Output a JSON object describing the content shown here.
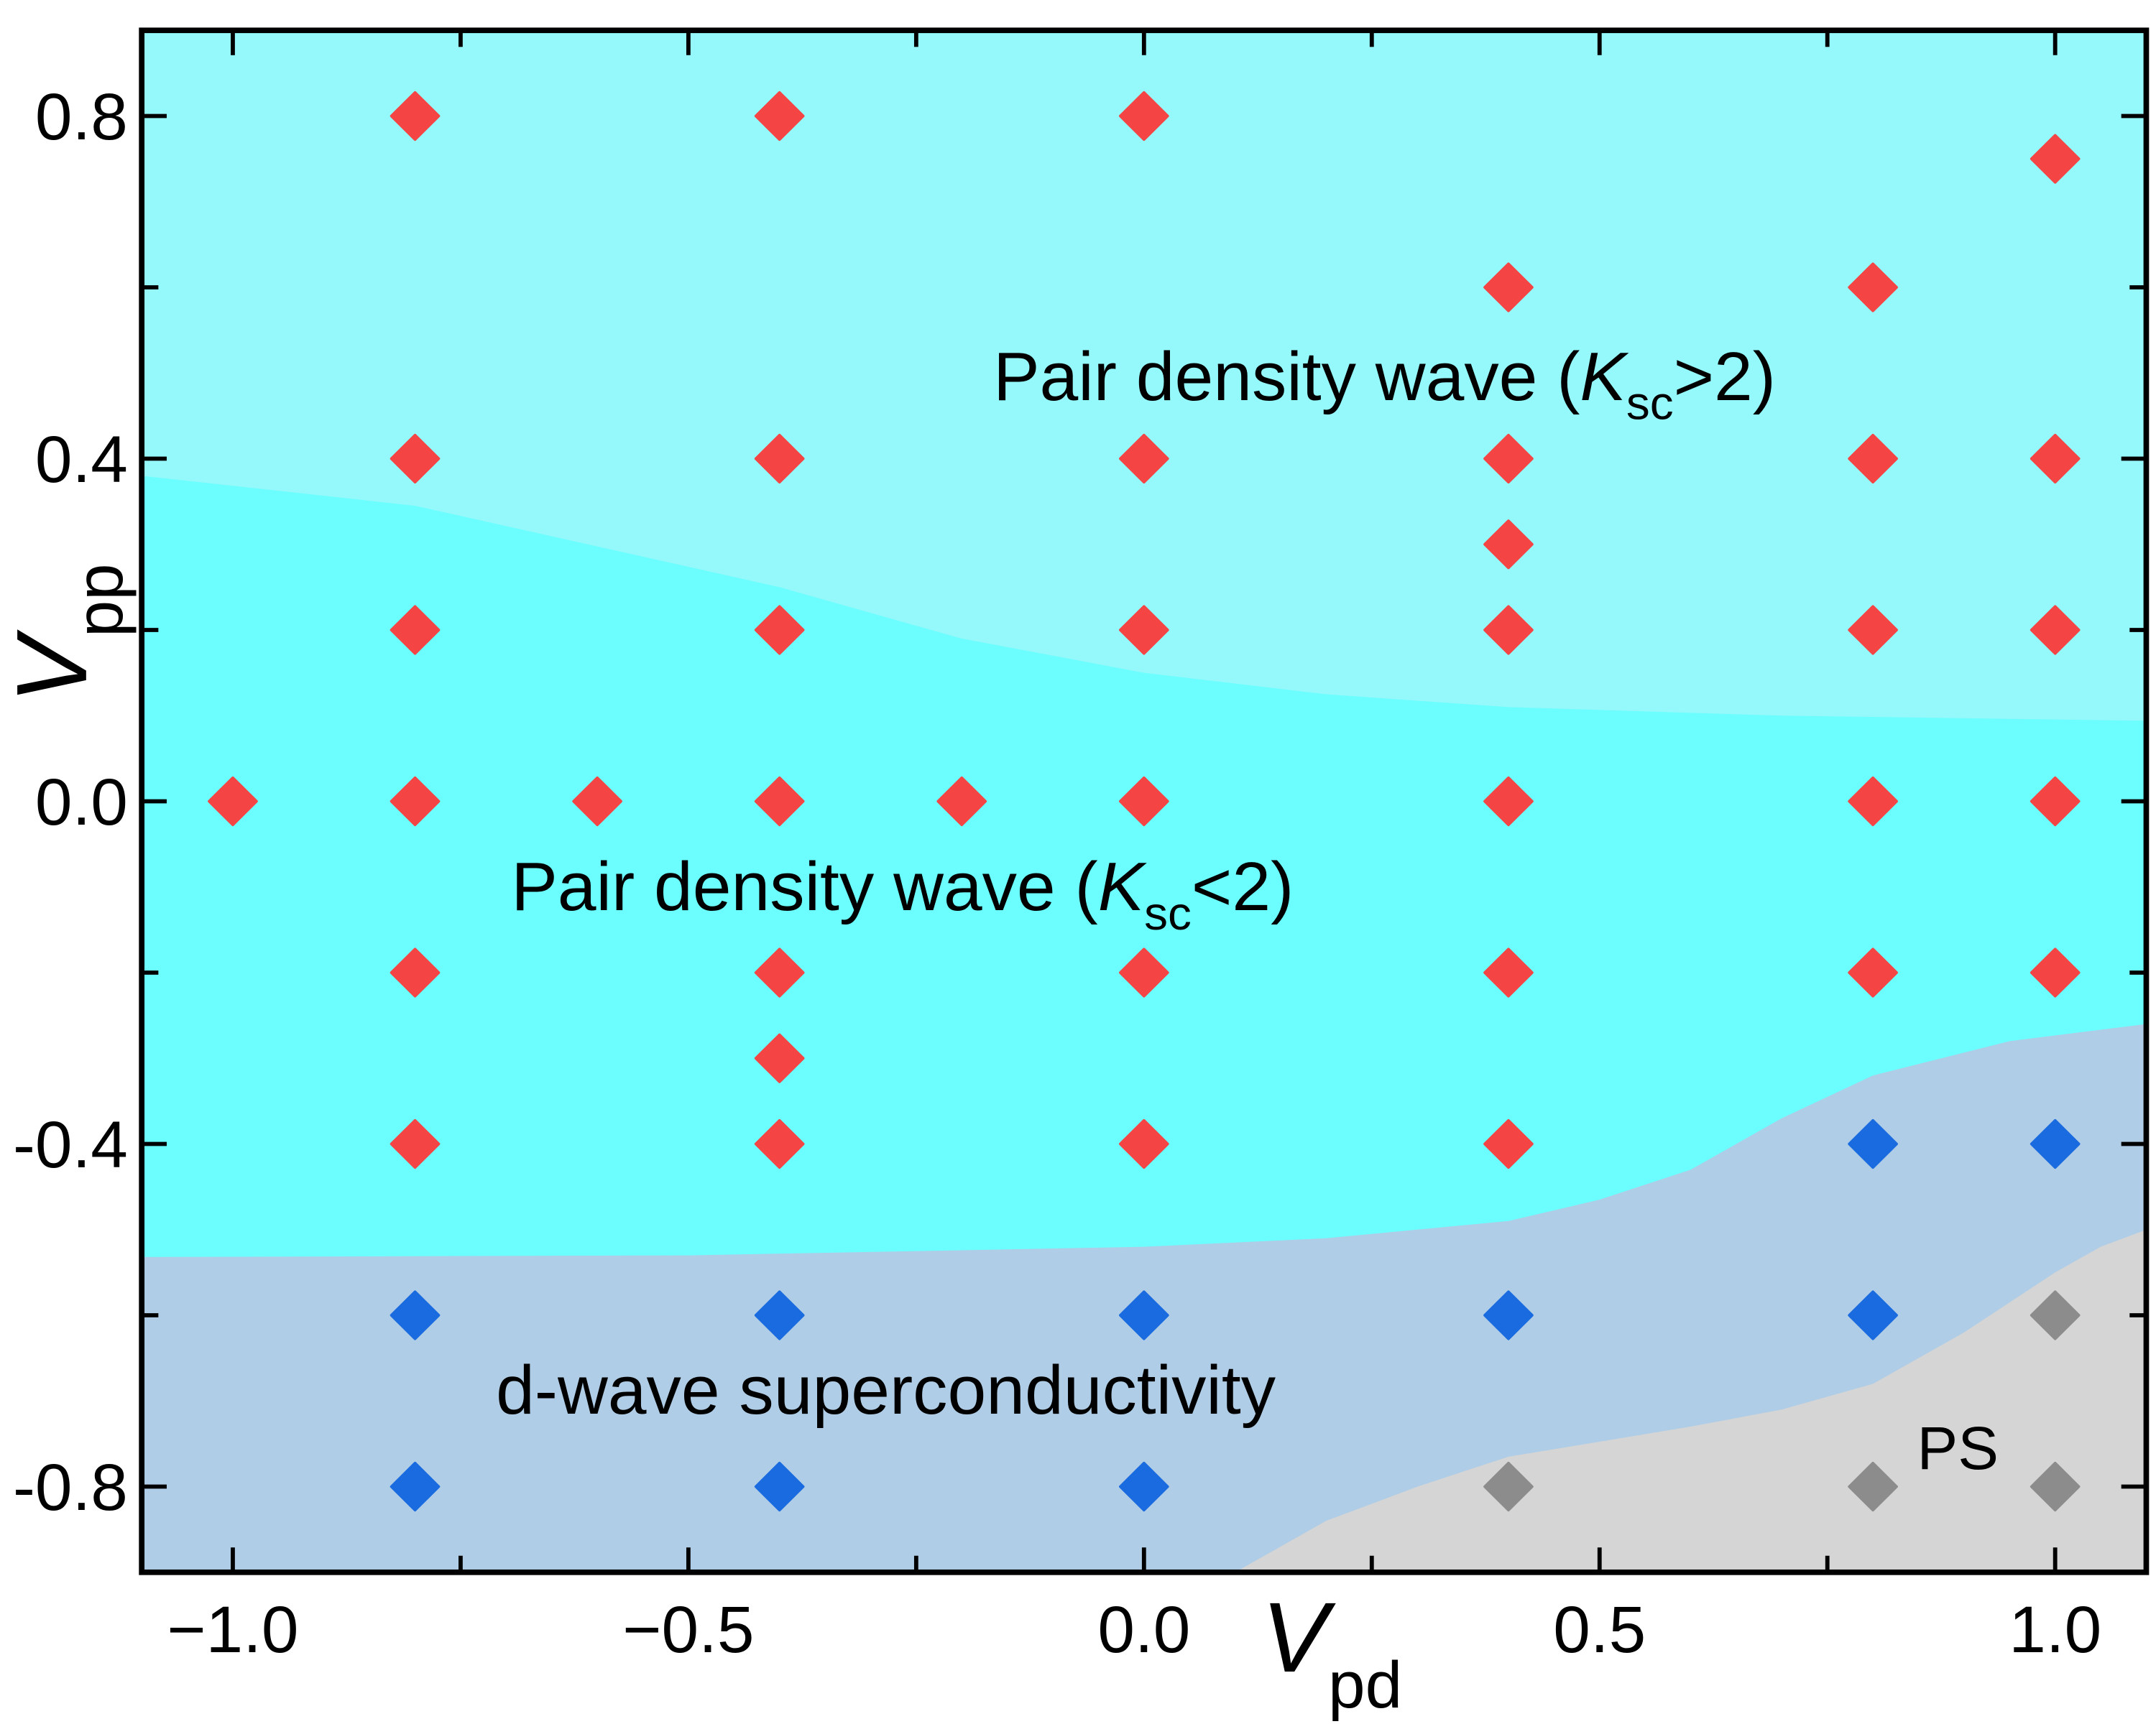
{
  "chart_data": {
    "type": "scatter",
    "xlabel": "V",
    "xlabel_sub": "pd",
    "ylabel": "V",
    "ylabel_sub": "pp",
    "xlim": [
      -1.1,
      1.1
    ],
    "ylim": [
      -0.9,
      0.9
    ],
    "xticks": [
      -1.0,
      -0.5,
      0.0,
      0.5,
      1.0
    ],
    "xtick_labels": [
      "−1.0",
      "−0.5",
      "0.0",
      "0.5",
      "1.0"
    ],
    "yticks": [
      0.8,
      0.4,
      0.0,
      -0.4,
      -0.8
    ],
    "ytick_labels": [
      "0.8",
      "0.4",
      "0.0",
      "-0.4",
      "-0.8"
    ],
    "grid": false,
    "marker": "diamond",
    "colors": {
      "pdw": "#f44444",
      "dsc": "#1a6ae0",
      "ps": "#8c8c8c",
      "region_pdw_gt2": "#95f8fa",
      "region_pdw_lt2": "#6cfefe",
      "region_dsc": "#afcde6",
      "region_ps": "#d5d5d5"
    },
    "series": [
      {
        "phase": "pdw",
        "points": [
          [
            -0.8,
            0.8
          ],
          [
            -0.4,
            0.8
          ],
          [
            0,
            0.8
          ],
          [
            1.0,
            0.75
          ],
          [
            0.4,
            0.6
          ],
          [
            0.8,
            0.6
          ],
          [
            -0.8,
            0.4
          ],
          [
            -0.4,
            0.4
          ],
          [
            0,
            0.4
          ],
          [
            0.4,
            0.4
          ],
          [
            0.8,
            0.4
          ],
          [
            1.0,
            0.4
          ],
          [
            0.4,
            0.3
          ],
          [
            -0.8,
            0.2
          ],
          [
            -0.4,
            0.2
          ],
          [
            0,
            0.2
          ],
          [
            0.4,
            0.2
          ],
          [
            0.8,
            0.2
          ],
          [
            1.0,
            0.2
          ],
          [
            -1.0,
            0
          ],
          [
            -0.8,
            0
          ],
          [
            -0.6,
            0
          ],
          [
            -0.4,
            0
          ],
          [
            -0.2,
            0
          ],
          [
            0,
            0
          ],
          [
            0.4,
            0
          ],
          [
            0.8,
            0
          ],
          [
            1.0,
            0
          ],
          [
            -0.8,
            -0.2
          ],
          [
            -0.4,
            -0.2
          ],
          [
            0,
            -0.2
          ],
          [
            0.4,
            -0.2
          ],
          [
            0.8,
            -0.2
          ],
          [
            1.0,
            -0.2
          ],
          [
            -0.4,
            -0.3
          ],
          [
            -0.8,
            -0.4
          ],
          [
            -0.4,
            -0.4
          ],
          [
            0,
            -0.4
          ],
          [
            0.4,
            -0.4
          ]
        ]
      },
      {
        "phase": "dsc",
        "points": [
          [
            0.8,
            -0.4
          ],
          [
            1.0,
            -0.4
          ],
          [
            -0.8,
            -0.6
          ],
          [
            -0.4,
            -0.6
          ],
          [
            0,
            -0.6
          ],
          [
            0.4,
            -0.6
          ],
          [
            0.8,
            -0.6
          ],
          [
            -0.8,
            -0.8
          ],
          [
            -0.4,
            -0.8
          ],
          [
            0,
            -0.8
          ]
        ]
      },
      {
        "phase": "ps",
        "points": [
          [
            1.0,
            -0.6
          ],
          [
            0.4,
            -0.8
          ],
          [
            0.8,
            -0.8
          ],
          [
            1.0,
            -0.8
          ]
        ]
      }
    ],
    "regions": [
      {
        "phase": "pdw_gt2",
        "boundary_below": [
          [
            -1.1,
            0.38
          ],
          [
            -0.8,
            0.345
          ],
          [
            -0.4,
            0.25
          ],
          [
            -0.2,
            0.19
          ],
          [
            0,
            0.15
          ],
          [
            0.2,
            0.125
          ],
          [
            0.4,
            0.11
          ],
          [
            0.7,
            0.1
          ],
          [
            1.1,
            0.094
          ]
        ]
      },
      {
        "phase": "pdw_lt2",
        "boundary_below": [
          [
            -1.1,
            -0.532
          ],
          [
            -0.5,
            -0.53
          ],
          [
            0,
            -0.52
          ],
          [
            0.2,
            -0.51
          ],
          [
            0.4,
            -0.49
          ],
          [
            0.5,
            -0.465
          ],
          [
            0.6,
            -0.43
          ],
          [
            0.7,
            -0.37
          ],
          [
            0.8,
            -0.32
          ],
          [
            0.95,
            -0.28
          ],
          [
            1.1,
            -0.26
          ]
        ]
      },
      {
        "phase": "ps",
        "boundary_above": [
          [
            0.1,
            -0.9
          ],
          [
            0.2,
            -0.84
          ],
          [
            0.3,
            -0.8
          ],
          [
            0.4,
            -0.765
          ],
          [
            0.6,
            -0.73
          ],
          [
            0.7,
            -0.71
          ],
          [
            0.8,
            -0.68
          ],
          [
            0.9,
            -0.62
          ],
          [
            1.0,
            -0.55
          ],
          [
            1.05,
            -0.52
          ],
          [
            1.1,
            -0.5
          ]
        ]
      }
    ],
    "annotations": {
      "pdw_gt2_pre": "Pair density wave (",
      "pdw_gt2_k": "K",
      "pdw_gt2_sub": "sc",
      "pdw_gt2_post": ">2)",
      "pdw_lt2_pre": "Pair density wave (",
      "pdw_lt2_k": "K",
      "pdw_lt2_sub": "sc",
      "pdw_lt2_post": "<2)",
      "dsc": "d-wave superconductivity",
      "ps": "PS"
    }
  }
}
